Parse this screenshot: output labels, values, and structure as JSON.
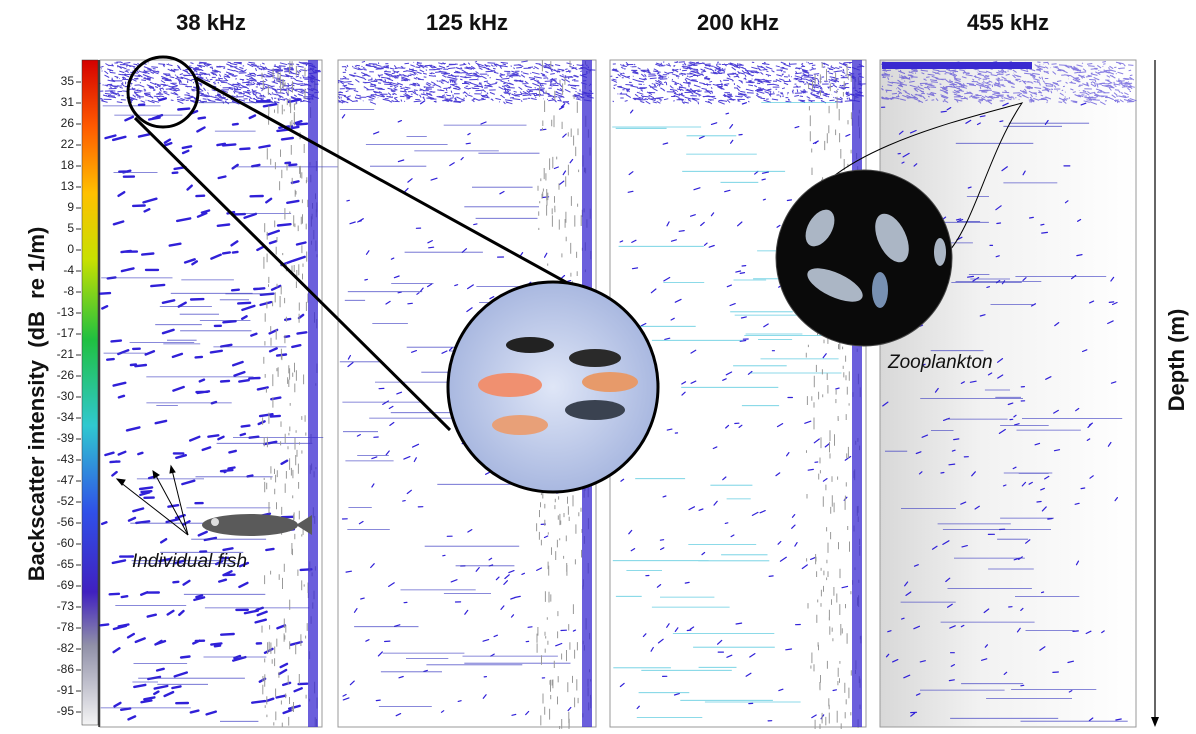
{
  "panels": [
    {
      "title": "38 kHz"
    },
    {
      "title": "125 kHz"
    },
    {
      "title": "200 kHz"
    },
    {
      "title": "455 kHz"
    }
  ],
  "colorbar": {
    "label": "Backscatter intensity  (dB  re 1/m)",
    "ticks": [
      35,
      31,
      26,
      22,
      18,
      13,
      9,
      5,
      0,
      -4,
      -8,
      -13,
      -17,
      -21,
      -26,
      -30,
      -34,
      -39,
      -43,
      -47,
      -52,
      -56,
      -60,
      -65,
      -69,
      -73,
      -78,
      -82,
      -86,
      -91,
      -95
    ]
  },
  "depth_axis": {
    "label": "Depth (m)"
  },
  "annotations": {
    "fish": "Individual fish",
    "zooplankton": "Zooplankton"
  }
}
